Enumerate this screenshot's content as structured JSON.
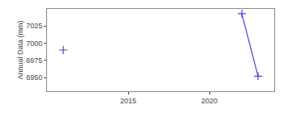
{
  "chart_data": {
    "type": "line",
    "ylabel": "Annual Data (mm)",
    "color": "#4444cc",
    "marker": "plus",
    "series": [
      {
        "x": [
          2011
        ],
        "values": [
          6990
        ],
        "line_style": "none"
      },
      {
        "x": [
          2022,
          2023
        ],
        "values": [
          7043,
          6952
        ],
        "line_style": "solid"
      }
    ],
    "xlim": [
      2010,
      2024
    ],
    "xticks": [
      2015,
      2020
    ],
    "ylim": [
      6930,
      7050
    ],
    "yticks": [
      6950,
      6975,
      7000,
      7025
    ],
    "grid": false
  }
}
